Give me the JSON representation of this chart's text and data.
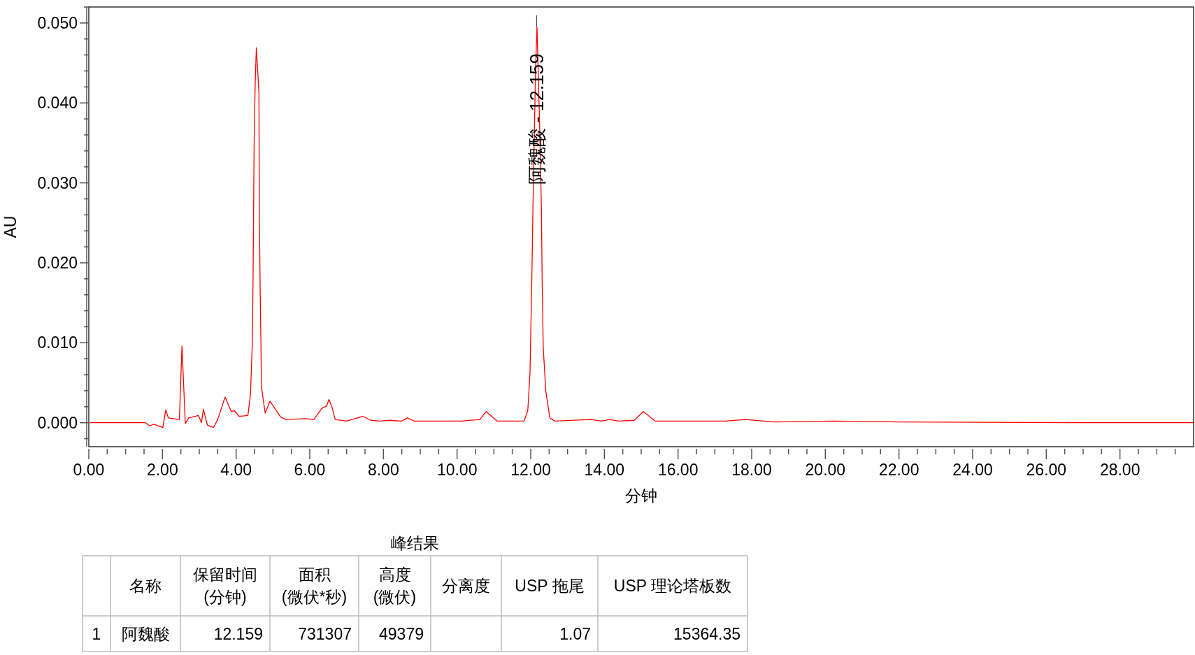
{
  "chart_data": {
    "type": "line",
    "xlabel": "分钟",
    "ylabel": "AU",
    "x": [
      0.03,
      1.54,
      1.66,
      1.76,
      2.01,
      2.09,
      2.16,
      2.46,
      2.53,
      2.62,
      2.71,
      2.98,
      3.06,
      3.11,
      3.22,
      3.39,
      3.5,
      3.7,
      3.87,
      3.95,
      4.08,
      4.32,
      4.39,
      4.44,
      4.46,
      4.49,
      4.52,
      4.55,
      4.62,
      4.63,
      4.65,
      4.69,
      4.79,
      4.92,
      5.21,
      5.35,
      5.89,
      6.11,
      6.33,
      6.46,
      6.52,
      6.6,
      6.69,
      7.0,
      7.44,
      7.66,
      7.89,
      8.17,
      8.49,
      8.65,
      8.84,
      10.11,
      10.62,
      10.79,
      11.09,
      11.82,
      11.92,
      11.98,
      12.03,
      12.06,
      12.13,
      12.17,
      12.24,
      12.29,
      12.31,
      12.34,
      12.41,
      12.52,
      12.65,
      13.63,
      13.92,
      14.14,
      14.39,
      14.81,
      15.06,
      15.38,
      17.28,
      17.84,
      18.62,
      20.22,
      22.04,
      27.32,
      30.0
    ],
    "series": [
      {
        "color": "#ff0000",
        "values": [
          0.0,
          0.0,
          -0.0004,
          -0.0002,
          -0.0006,
          0.0016,
          0.0006,
          0.0004,
          0.0096,
          -0.0001,
          0.0006,
          0.0009,
          0.0,
          0.0017,
          -0.0003,
          -0.0006,
          0.0004,
          0.0032,
          0.0014,
          0.0015,
          0.0008,
          0.0009,
          0.0035,
          0.01,
          0.0179,
          0.0354,
          0.0428,
          0.0469,
          0.0413,
          0.0268,
          0.0179,
          0.0044,
          0.0012,
          0.0027,
          0.0007,
          0.0004,
          0.0005,
          0.0004,
          0.0018,
          0.0021,
          0.0029,
          0.002,
          0.0004,
          0.0002,
          0.0008,
          0.0003,
          0.0002,
          0.0003,
          0.0002,
          0.0006,
          0.0002,
          0.0002,
          0.0004,
          0.0014,
          0.0002,
          0.0002,
          0.0015,
          0.0062,
          0.0179,
          0.0268,
          0.0438,
          0.0495,
          0.0376,
          0.0268,
          0.0179,
          0.0094,
          0.0039,
          0.0006,
          0.0002,
          0.0004,
          0.0002,
          0.0004,
          0.0002,
          0.0003,
          0.0014,
          0.0002,
          0.0002,
          0.0004,
          0.0001,
          0.0002,
          0.0001,
          0.0,
          0.0
        ]
      }
    ],
    "xlim": [
      0,
      30
    ],
    "ylim": [
      -0.003,
      0.052
    ],
    "xticks": [
      {
        "value": 0,
        "label": "0.00"
      },
      {
        "value": 0.5,
        "label": null
      },
      {
        "value": 1,
        "label": null
      },
      {
        "value": 1.5,
        "label": null
      },
      {
        "value": 2,
        "label": "2.00"
      },
      {
        "value": 2.5,
        "label": null
      },
      {
        "value": 3,
        "label": null
      },
      {
        "value": 3.5,
        "label": null
      },
      {
        "value": 4,
        "label": "4.00"
      },
      {
        "value": 4.5,
        "label": null
      },
      {
        "value": 5,
        "label": null
      },
      {
        "value": 5.5,
        "label": null
      },
      {
        "value": 6,
        "label": "6.00"
      },
      {
        "value": 6.5,
        "label": null
      },
      {
        "value": 7,
        "label": null
      },
      {
        "value": 7.5,
        "label": null
      },
      {
        "value": 8,
        "label": "8.00"
      },
      {
        "value": 8.5,
        "label": null
      },
      {
        "value": 9,
        "label": null
      },
      {
        "value": 9.5,
        "label": null
      },
      {
        "value": 10,
        "label": "10.00"
      },
      {
        "value": 10.5,
        "label": null
      },
      {
        "value": 11,
        "label": null
      },
      {
        "value": 11.5,
        "label": null
      },
      {
        "value": 12,
        "label": "12.00"
      },
      {
        "value": 12.5,
        "label": null
      },
      {
        "value": 13,
        "label": null
      },
      {
        "value": 13.5,
        "label": null
      },
      {
        "value": 14,
        "label": "14.00"
      },
      {
        "value": 14.5,
        "label": null
      },
      {
        "value": 15,
        "label": null
      },
      {
        "value": 15.5,
        "label": null
      },
      {
        "value": 16,
        "label": "16.00"
      },
      {
        "value": 16.5,
        "label": null
      },
      {
        "value": 17,
        "label": null
      },
      {
        "value": 17.5,
        "label": null
      },
      {
        "value": 18,
        "label": "18.00"
      },
      {
        "value": 18.5,
        "label": null
      },
      {
        "value": 19,
        "label": null
      },
      {
        "value": 19.5,
        "label": null
      },
      {
        "value": 20,
        "label": "20.00"
      },
      {
        "value": 20.5,
        "label": null
      },
      {
        "value": 21,
        "label": null
      },
      {
        "value": 21.5,
        "label": null
      },
      {
        "value": 22,
        "label": "22.00"
      },
      {
        "value": 22.5,
        "label": null
      },
      {
        "value": 23,
        "label": null
      },
      {
        "value": 23.5,
        "label": null
      },
      {
        "value": 24,
        "label": "24.00"
      },
      {
        "value": 24.5,
        "label": null
      },
      {
        "value": 25,
        "label": null
      },
      {
        "value": 25.5,
        "label": null
      },
      {
        "value": 26,
        "label": "26.00"
      },
      {
        "value": 26.5,
        "label": null
      },
      {
        "value": 27,
        "label": null
      },
      {
        "value": 27.5,
        "label": null
      },
      {
        "value": 28,
        "label": "28.00"
      },
      {
        "value": 28.5,
        "label": null
      },
      {
        "value": 29,
        "label": null
      },
      {
        "value": 29.5,
        "label": null
      }
    ],
    "yticks": [
      {
        "value": -0.002,
        "label": null
      },
      {
        "value": 0,
        "label": "0.000"
      },
      {
        "value": 0.002,
        "label": null
      },
      {
        "value": 0.004,
        "label": null
      },
      {
        "value": 0.006,
        "label": null
      },
      {
        "value": 0.008,
        "label": null
      },
      {
        "value": 0.01,
        "label": "0.010"
      },
      {
        "value": 0.012,
        "label": null
      },
      {
        "value": 0.014,
        "label": null
      },
      {
        "value": 0.016,
        "label": null
      },
      {
        "value": 0.018,
        "label": null
      },
      {
        "value": 0.02,
        "label": "0.020"
      },
      {
        "value": 0.022,
        "label": null
      },
      {
        "value": 0.024,
        "label": null
      },
      {
        "value": 0.026,
        "label": null
      },
      {
        "value": 0.028,
        "label": null
      },
      {
        "value": 0.03,
        "label": "0.030"
      },
      {
        "value": 0.032,
        "label": null
      },
      {
        "value": 0.034,
        "label": null
      },
      {
        "value": 0.036,
        "label": null
      },
      {
        "value": 0.038,
        "label": null
      },
      {
        "value": 0.04,
        "label": "0.040"
      },
      {
        "value": 0.042,
        "label": null
      },
      {
        "value": 0.044,
        "label": null
      },
      {
        "value": 0.046,
        "label": null
      },
      {
        "value": 0.048,
        "label": null
      },
      {
        "value": 0.05,
        "label": "0.050"
      },
      {
        "value": 0.052,
        "label": null
      }
    ],
    "grid": false,
    "annotations": [
      {
        "text": "阿魏酸 - 12.159",
        "x": 12.159,
        "y": 0.0495
      },
      "峰结果",
      null,
      "名称",
      "保留时间\n(分钟)",
      "面积\n(微伏*秒)",
      "高度\n(微伏)",
      "分离度",
      "USP 拖尾",
      "USP 理论塔板数",
      "1",
      "阿魏酸",
      "12.159",
      "731307",
      "49379",
      null,
      "1.07",
      "15364.35"
    ]
  }
}
